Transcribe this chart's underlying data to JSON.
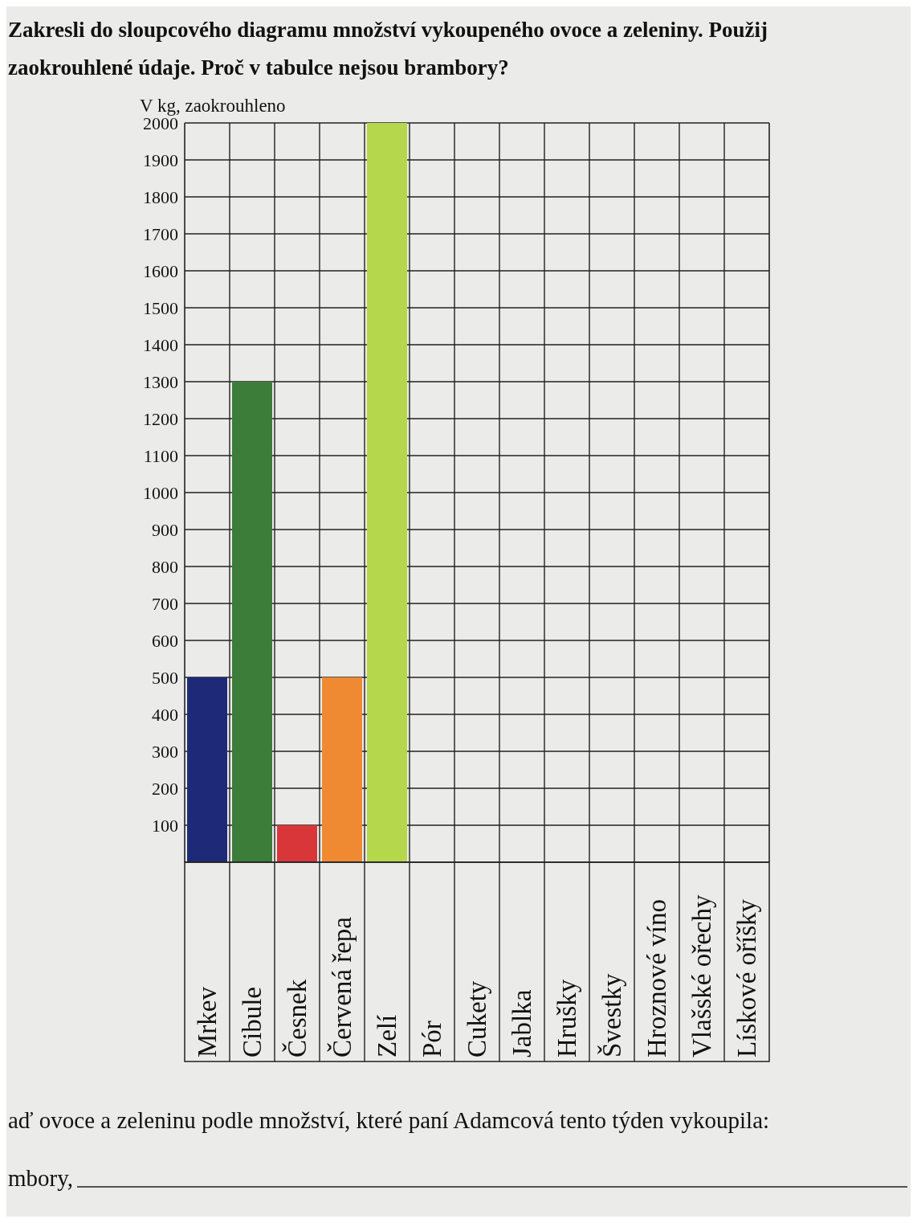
{
  "chart_data": {
    "type": "bar",
    "title": "Zakresli do sloupcového diagramu množství vykoupeného ovoce a zeleniny. Použij zaokrouhlené údaje. Proč v tabulce nejsou brambory?",
    "ylabel": "V kg, zaokrouhleno",
    "categories": [
      "Mrkev",
      "Cibule",
      "Česnek",
      "Červená řepa",
      "Zelí",
      "Pór",
      "Cukety",
      "Jablka",
      "Hrušky",
      "Švestky",
      "Hroznové víno",
      "Vlašské ořechy",
      "Lískové oříšky"
    ],
    "values": [
      500,
      1300,
      100,
      500,
      2000,
      null,
      null,
      null,
      null,
      null,
      null,
      null,
      null
    ],
    "colors": [
      "#1e2a78",
      "#3d7d3a",
      "#d9363a",
      "#ef8a33",
      "#b5d74c",
      null,
      null,
      null,
      null,
      null,
      null,
      null,
      null
    ],
    "ylim": [
      0,
      2000
    ],
    "yticks": [
      100,
      200,
      300,
      400,
      500,
      600,
      700,
      800,
      900,
      1000,
      1100,
      1200,
      1300,
      1400,
      1500,
      1600,
      1700,
      1800,
      1900,
      2000
    ],
    "grid": true,
    "annotations": [
      "aď ovoce a zeleninu podle množství, které paní Adamcová tento týden vykoupila:",
      "mbory,"
    ]
  }
}
